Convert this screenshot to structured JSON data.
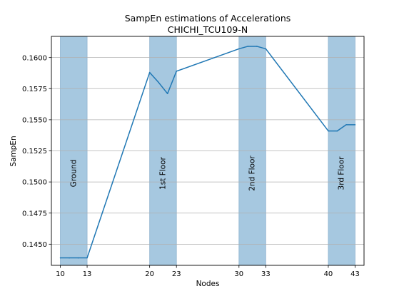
{
  "chart_data": {
    "type": "line",
    "title": "SampEn estimations of Accelerations",
    "subtitle": "CHICHI_TCU109-N",
    "xlabel": "Nodes",
    "ylabel": "SampEn",
    "xlim": [
      9,
      44
    ],
    "ylim": [
      0.1433,
      0.1617
    ],
    "x_ticks": [
      10,
      13,
      20,
      23,
      30,
      33,
      40,
      43
    ],
    "y_ticks": [
      0.145,
      0.1475,
      0.15,
      0.1525,
      0.155,
      0.1575,
      0.16
    ],
    "y_tick_labels": [
      "0.1450",
      "0.1475",
      "0.1500",
      "0.1525",
      "0.1550",
      "0.1575",
      "0.1600"
    ],
    "grid": "horizontal",
    "bands": [
      {
        "x0": 10,
        "x1": 13,
        "label": "Ground"
      },
      {
        "x0": 20,
        "x1": 23,
        "label": "1st Floor"
      },
      {
        "x0": 30,
        "x1": 33,
        "label": "2nd Floor"
      },
      {
        "x0": 40,
        "x1": 43,
        "label": "3rd Floor"
      }
    ],
    "series": [
      {
        "x": [
          10,
          11,
          12,
          13,
          20,
          21,
          22,
          23,
          30,
          31,
          32,
          33,
          40,
          41,
          42,
          43
        ],
        "values": [
          0.1439,
          0.1439,
          0.1439,
          0.1439,
          0.1588,
          0.158,
          0.1571,
          0.1589,
          0.1607,
          0.1609,
          0.1609,
          0.1607,
          0.1541,
          0.1541,
          0.1546,
          0.1546
        ]
      }
    ]
  },
  "colors": {
    "line": "#1f77b4",
    "band": "#a6c8e0",
    "band_edge": "#8fb3cf",
    "grid": "#b0b0b0",
    "axis": "#000000"
  }
}
